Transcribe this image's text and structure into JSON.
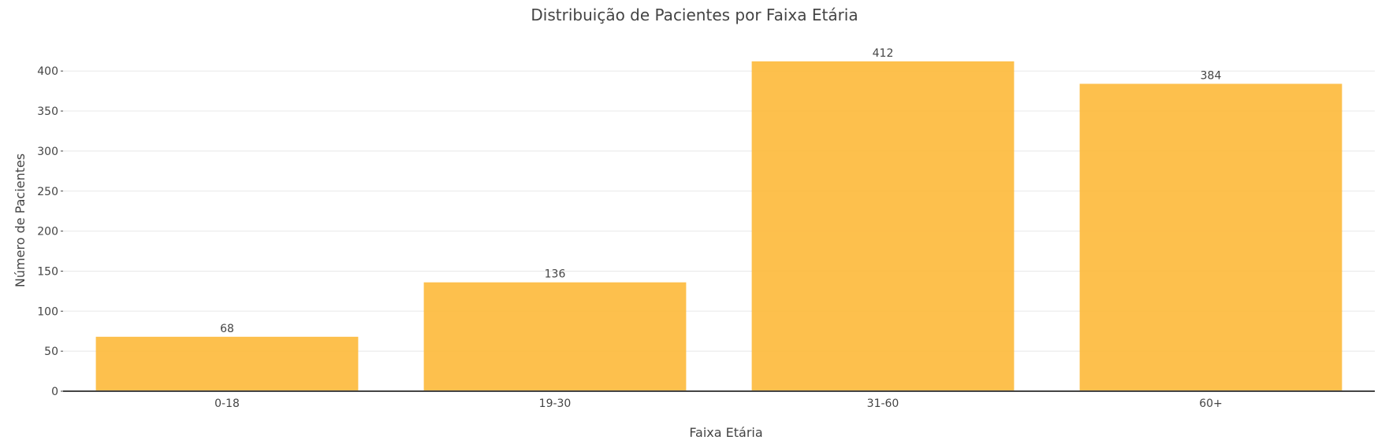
{
  "chart_data": {
    "type": "bar",
    "title": "Distribuição de Pacientes por Faixa Etária",
    "xlabel": "Faixa Etária",
    "ylabel": "Número de Pacientes",
    "categories": [
      "0-18",
      "19-30",
      "31-60",
      "60+"
    ],
    "values": [
      68,
      136,
      412,
      384
    ],
    "ylim": [
      0,
      412
    ],
    "yticks": [
      0,
      50,
      100,
      150,
      200,
      250,
      300,
      350,
      400
    ],
    "grid": true,
    "legend": "none",
    "bar_color": "#fdb93a",
    "bar_opacity": 0.9,
    "data_labels": true
  }
}
